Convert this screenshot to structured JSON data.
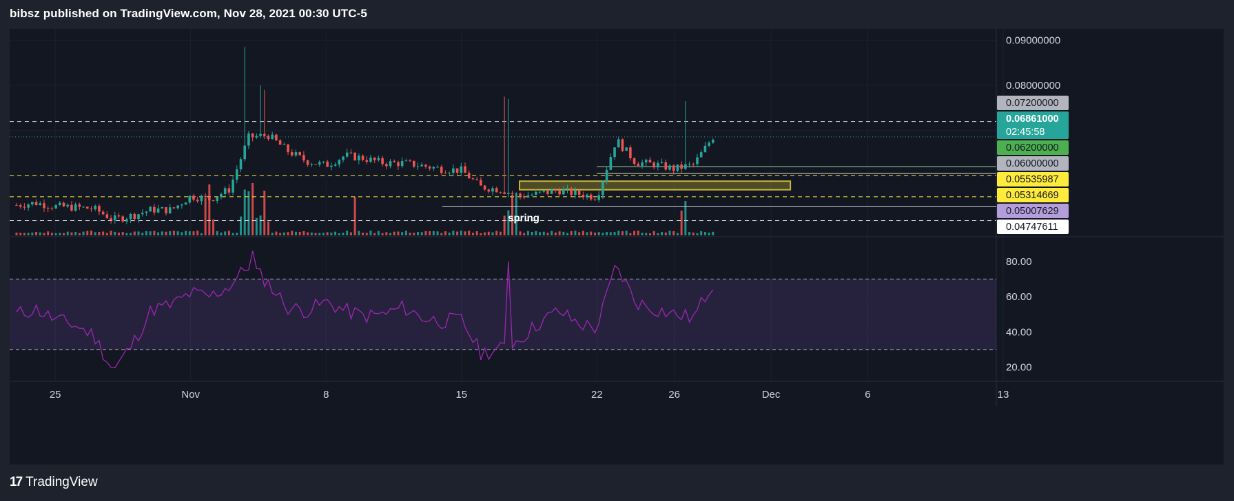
{
  "header": {
    "published": "bibsz published on TradingView.com, Nov 28, 2021 00:30 UTC-5"
  },
  "footer": {
    "brand": "TradingView",
    "logo_glyph": "17"
  },
  "colors": {
    "bg": "#131722",
    "up": "#26a69a",
    "down": "#ef5350",
    "rsi": "#9c27b0",
    "price_line": "#26a69a",
    "yellow": "#ffeb3b",
    "grid": "#1e222d"
  },
  "chart_data": [
    {
      "type": "candlestick",
      "title": "",
      "ylabel": "",
      "price_scale": [
        "0.09000000",
        "0.08000000"
      ],
      "ylim": [
        0.0465,
        0.0925
      ],
      "x_ticks": [
        {
          "label": "25",
          "date": "2021-10-25"
        },
        {
          "label": "Nov",
          "date": "2021-11-01"
        },
        {
          "label": "8",
          "date": "2021-11-08"
        },
        {
          "label": "15",
          "date": "2021-11-15"
        },
        {
          "label": "22",
          "date": "2021-11-22"
        },
        {
          "label": "26",
          "date": "2021-11-26"
        },
        {
          "label": "Dec",
          "date": "2021-12-01"
        },
        {
          "label": "6",
          "date": "2021-12-06"
        },
        {
          "label": "13",
          "date": "2021-12-13"
        }
      ],
      "x_range": [
        "2021-10-23",
        "2021-12-13"
      ],
      "price_path": [
        {
          "date": "2021-10-23",
          "price": 0.0535
        },
        {
          "date": "2021-10-24",
          "price": 0.054
        },
        {
          "date": "2021-10-25",
          "price": 0.0532
        },
        {
          "date": "2021-10-26",
          "price": 0.053
        },
        {
          "date": "2021-10-27",
          "price": 0.0527
        },
        {
          "date": "2021-10-28",
          "price": 0.0503
        },
        {
          "date": "2021-10-29",
          "price": 0.0512
        },
        {
          "date": "2021-10-30",
          "price": 0.0525
        },
        {
          "date": "2021-10-31",
          "price": 0.0524
        },
        {
          "date": "2021-11-01",
          "price": 0.0555
        },
        {
          "date": "2021-11-02",
          "price": 0.0548
        },
        {
          "date": "2021-11-03",
          "price": 0.057
        },
        {
          "date": "2021-11-04",
          "price": 0.0685
        },
        {
          "date": "2021-11-05",
          "price": 0.069
        },
        {
          "date": "2021-11-06",
          "price": 0.0655
        },
        {
          "date": "2021-11-07",
          "price": 0.0632
        },
        {
          "date": "2021-11-08",
          "price": 0.0623
        },
        {
          "date": "2021-11-09",
          "price": 0.0645
        },
        {
          "date": "2021-11-10",
          "price": 0.0638
        },
        {
          "date": "2021-11-11",
          "price": 0.0628
        },
        {
          "date": "2021-11-12",
          "price": 0.0628
        },
        {
          "date": "2021-11-13",
          "price": 0.0622
        },
        {
          "date": "2021-11-14",
          "price": 0.0615
        },
        {
          "date": "2021-11-15",
          "price": 0.0612
        },
        {
          "date": "2021-11-16",
          "price": 0.0575
        },
        {
          "date": "2021-11-17",
          "price": 0.057
        },
        {
          "date": "2021-11-18",
          "price": 0.0555
        },
        {
          "date": "2021-11-19",
          "price": 0.056
        },
        {
          "date": "2021-11-20",
          "price": 0.0568
        },
        {
          "date": "2021-11-21",
          "price": 0.056
        },
        {
          "date": "2021-11-22",
          "price": 0.0553
        },
        {
          "date": "2021-11-23",
          "price": 0.068
        },
        {
          "date": "2021-11-24",
          "price": 0.063
        },
        {
          "date": "2021-11-25",
          "price": 0.0625
        },
        {
          "date": "2021-11-26",
          "price": 0.0615
        },
        {
          "date": "2021-11-27",
          "price": 0.0625
        },
        {
          "date": "2021-11-28",
          "price": 0.0686
        }
      ],
      "horizontal_levels": [
        {
          "price": 0.072,
          "label": "0.07200000",
          "style": "dashed-white"
        },
        {
          "price": 0.062,
          "label": "0.06200000",
          "style": "solid-green",
          "from": "2021-11-22"
        },
        {
          "price": 0.0605,
          "label": "",
          "style": "solid-white",
          "from": "2021-11-22"
        },
        {
          "price": 0.06,
          "label": "0.06000000",
          "style": "dashed-yellow"
        },
        {
          "price": 0.05535987,
          "label": "0.05535987",
          "style": "dashed-yellow"
        },
        {
          "price": 0.05314669,
          "label": "0.05314669",
          "style": "solid-white",
          "from": "2021-11-14"
        },
        {
          "price": 0.05007629,
          "label": "0.05007629",
          "style": "dashed-white"
        }
      ],
      "price_labels": [
        {
          "value": "0.07200000",
          "bg": "#b2b5be",
          "fg": "#131722"
        },
        {
          "value": "0.06861000",
          "bg": "#26a69a",
          "fg": "#ffffff",
          "countdown": "02:45:58"
        },
        {
          "value": "0.06200000",
          "bg": "#4caf50",
          "fg": "#131722"
        },
        {
          "value": "0.06000000",
          "bg": "#b2b5be",
          "fg": "#131722"
        },
        {
          "value": "0.05535987",
          "bg": "#ffeb3b",
          "fg": "#131722"
        },
        {
          "value": "0.05314669",
          "bg": "#ffeb3b",
          "fg": "#131722"
        },
        {
          "value": "0.05007629",
          "bg": "#b39ddb",
          "fg": "#131722"
        },
        {
          "value": "0.04747611",
          "bg": "#ffffff",
          "fg": "#131722"
        }
      ],
      "rectangle": {
        "from": "2021-11-18",
        "to": "2021-12-02",
        "top": 0.0588,
        "bottom": 0.0569
      },
      "annotation": {
        "text": "spring",
        "date": "2021-11-18"
      },
      "last_price": "0.06861000",
      "countdown": "02:45:58"
    },
    {
      "type": "line",
      "name": "",
      "ylim": [
        12,
        94
      ],
      "y_ticks": [
        "80.00",
        "60.00",
        "40.00",
        "20.00"
      ],
      "bands": {
        "upper": 70,
        "lower": 30
      },
      "rsi": [
        {
          "date": "2021-10-23",
          "value": 50
        },
        {
          "date": "2021-10-24",
          "value": 53
        },
        {
          "date": "2021-10-25",
          "value": 47
        },
        {
          "date": "2021-10-26",
          "value": 44
        },
        {
          "date": "2021-10-27",
          "value": 38
        },
        {
          "date": "2021-10-28",
          "value": 18
        },
        {
          "date": "2021-10-29",
          "value": 33
        },
        {
          "date": "2021-10-30",
          "value": 53
        },
        {
          "date": "2021-10-31",
          "value": 55
        },
        {
          "date": "2021-11-01",
          "value": 62
        },
        {
          "date": "2021-11-02",
          "value": 60
        },
        {
          "date": "2021-11-03",
          "value": 66
        },
        {
          "date": "2021-11-04",
          "value": 78
        },
        {
          "date": "2021-11-05",
          "value": 68
        },
        {
          "date": "2021-11-06",
          "value": 54
        },
        {
          "date": "2021-11-07",
          "value": 52
        },
        {
          "date": "2021-11-08",
          "value": 57
        },
        {
          "date": "2021-11-09",
          "value": 52
        },
        {
          "date": "2021-11-10",
          "value": 49
        },
        {
          "date": "2021-11-11",
          "value": 50
        },
        {
          "date": "2021-11-12",
          "value": 54
        },
        {
          "date": "2021-11-13",
          "value": 48
        },
        {
          "date": "2021-11-14",
          "value": 46
        },
        {
          "date": "2021-11-15",
          "value": 47
        },
        {
          "date": "2021-11-16",
          "value": 28
        },
        {
          "date": "2021-11-17",
          "value": 30
        },
        {
          "date": "2021-11-18",
          "value": 36
        },
        {
          "date": "2021-11-19",
          "value": 45
        },
        {
          "date": "2021-11-20",
          "value": 52
        },
        {
          "date": "2021-11-21",
          "value": 45
        },
        {
          "date": "2021-11-22",
          "value": 42
        },
        {
          "date": "2021-11-23",
          "value": 78
        },
        {
          "date": "2021-11-24",
          "value": 57
        },
        {
          "date": "2021-11-25",
          "value": 53
        },
        {
          "date": "2021-11-26",
          "value": 50
        },
        {
          "date": "2021-11-27",
          "value": 48
        },
        {
          "date": "2021-11-28",
          "value": 68
        }
      ]
    }
  ]
}
